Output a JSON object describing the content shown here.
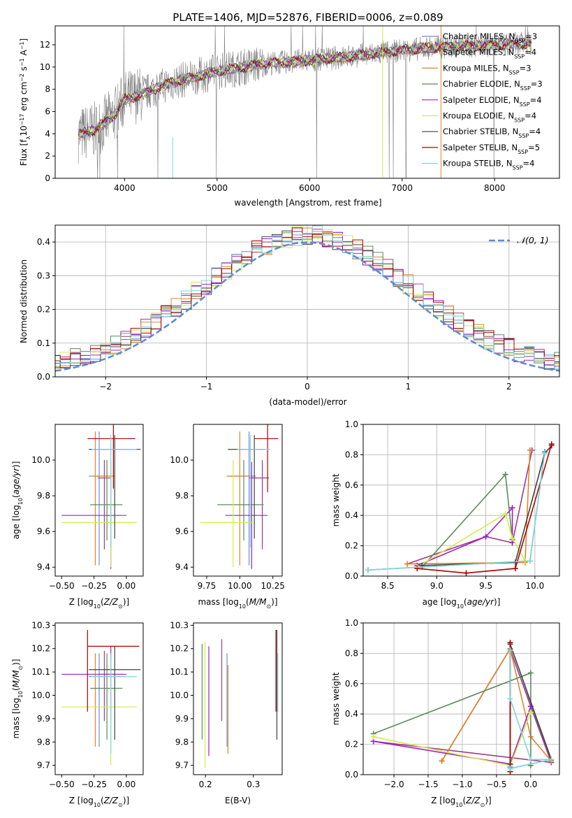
{
  "figure": {
    "title": "PLATE=1406, MJD=52876, FIBERID=0006, z=0.089"
  },
  "colors": {
    "Chabrier MILES": "#6a8fd8",
    "Salpeter MILES": "#a03a8a",
    "Kroupa MILES": "#e0852a",
    "Chabrier ELODIE": "#5c8a5c",
    "Salpeter ELODIE": "#a020c8",
    "Kroupa ELODIE": "#d4ea4a",
    "Chabrier STELIB": "#404040",
    "Salpeter STELIB": "#b00000",
    "Kroupa STELIB": "#7ed6da",
    "data": "#808080",
    "normal": "#5b8ad8"
  },
  "chart_data": [
    {
      "id": "spectrum",
      "type": "line",
      "xlabel": "wavelength [Angstrom, rest frame]",
      "ylabel": "Flux [f_λ 10^-17 erg cm^-2 s^-1 A^-1]",
      "xlim": [
        3250,
        8700
      ],
      "ylim": [
        0,
        13.7
      ],
      "xticks": [
        4000,
        5000,
        6000,
        7000,
        8000
      ],
      "yticks": [
        0,
        2,
        4,
        6,
        8,
        10,
        12
      ],
      "legend_position": "right",
      "series": [
        {
          "name": "Chabrier MILES",
          "nssp": "3"
        },
        {
          "name": "Salpeter MILES",
          "nssp": "4"
        },
        {
          "name": "Kroupa MILES",
          "nssp": "3"
        },
        {
          "name": "Chabrier ELODIE",
          "nssp": "3"
        },
        {
          "name": "Salpeter ELODIE",
          "nssp": "4"
        },
        {
          "name": "Kroupa ELODIE",
          "nssp": "4"
        },
        {
          "name": "Chabrier STELIB",
          "nssp": "4"
        },
        {
          "name": "Salpeter STELIB",
          "nssp": "5"
        },
        {
          "name": "Kroupa STELIB",
          "nssp": "4"
        }
      ],
      "model_continuum": {
        "x": [
          3500,
          3700,
          3900,
          4000,
          4200,
          4500,
          5000,
          5500,
          6000,
          6500,
          7000,
          7400,
          8000,
          8400
        ],
        "y": [
          3.9,
          4.4,
          5.8,
          7.1,
          7.6,
          8.6,
          9.6,
          10.3,
          10.6,
          11.0,
          11.5,
          11.8,
          12.0,
          12.1
        ]
      }
    },
    {
      "id": "residuals",
      "type": "line",
      "xlabel": "(data-model)/error",
      "ylabel": "Normed distribution",
      "xlim": [
        -2.5,
        2.5
      ],
      "ylim": [
        0,
        0.45
      ],
      "xticks": [
        -2,
        -1,
        0,
        1,
        2
      ],
      "yticks": [
        0.0,
        0.1,
        0.2,
        0.3,
        0.4
      ],
      "legend_label": "𝒩(0, 1)",
      "legend_position": "top-right",
      "grid": true
    },
    {
      "id": "age_vs_Z",
      "type": "scatter",
      "xlabel": "Z [log10(Z/Z⊙)]",
      "ylabel": "age  [log10(age/yr)]",
      "xlim": [
        -0.55,
        0.13
      ],
      "ylim": [
        9.35,
        10.2
      ],
      "xticks": [
        -0.5,
        -0.25,
        0.0
      ],
      "yticks": [
        9.4,
        9.6,
        9.8,
        10.0
      ],
      "points": [
        {
          "series": "Chabrier MILES",
          "x": -0.21,
          "y": 9.91,
          "xerr": [
            0.08,
            0.1
          ],
          "yerr": [
            0.5,
            0.25
          ]
        },
        {
          "series": "Salpeter MILES",
          "x": -0.17,
          "y": 9.9,
          "xerr": [
            0.05,
            0.05
          ],
          "yerr": [
            0.4,
            0.1
          ]
        },
        {
          "series": "Kroupa MILES",
          "x": -0.24,
          "y": 9.91,
          "xerr": [
            0.02,
            0.15
          ],
          "yerr": [
            0.5,
            0.25
          ]
        },
        {
          "series": "Chabrier ELODIE",
          "x": -0.15,
          "y": 9.75,
          "xerr": [
            0.13,
            0.12
          ],
          "yerr": [
            0.2,
            0.25
          ]
        },
        {
          "series": "Salpeter ELODIE",
          "x": -0.12,
          "y": 9.69,
          "xerr": [
            0.38,
            0.12
          ],
          "yerr": [
            0.3,
            0.3
          ]
        },
        {
          "series": "Kroupa ELODIE",
          "x": -0.12,
          "y": 9.65,
          "xerr": [
            0.38,
            0.2
          ],
          "yerr": [
            0.25,
            0.35
          ]
        },
        {
          "series": "Chabrier STELIB",
          "x": -0.09,
          "y": 10.06,
          "xerr": [
            0.2,
            0.2
          ],
          "yerr": [
            0.5,
            0.08
          ]
        },
        {
          "series": "Salpeter STELIB",
          "x": -0.1,
          "y": 10.12,
          "xerr": [
            0.2,
            0.17
          ],
          "yerr": [
            0.28,
            0.08
          ]
        },
        {
          "series": "Kroupa STELIB",
          "x": -0.12,
          "y": 10.06,
          "xerr": [
            0.15,
            0.2
          ],
          "yerr": [
            0.55,
            0.08
          ]
        }
      ]
    },
    {
      "id": "age_vs_mass",
      "type": "scatter",
      "xlabel": "mass [log10(M/M⊙)]",
      "ylabel": "",
      "xlim": [
        9.65,
        10.32
      ],
      "ylim": [
        9.35,
        10.2
      ],
      "xticks": [
        9.75,
        10.0,
        10.25
      ],
      "yticks": [
        9.4,
        9.6,
        9.8,
        10.0
      ],
      "points": [
        {
          "series": "Chabrier MILES",
          "x": 10.07,
          "y": 9.91,
          "xerr": [
            0.15,
            0.05
          ],
          "yerr": [
            0.5,
            0.25
          ]
        },
        {
          "series": "Salpeter MILES",
          "x": 10.17,
          "y": 9.9,
          "xerr": [
            0.1,
            0.05
          ],
          "yerr": [
            0.4,
            0.1
          ]
        },
        {
          "series": "Kroupa MILES",
          "x": 10.0,
          "y": 9.91,
          "xerr": [
            0.1,
            0.08
          ],
          "yerr": [
            0.5,
            0.25
          ]
        },
        {
          "series": "Chabrier ELODIE",
          "x": 10.03,
          "y": 9.75,
          "xerr": [
            0.2,
            0.15
          ],
          "yerr": [
            0.2,
            0.25
          ]
        },
        {
          "series": "Salpeter ELODIE",
          "x": 10.09,
          "y": 9.69,
          "xerr": [
            0.2,
            0.12
          ],
          "yerr": [
            0.3,
            0.3
          ]
        },
        {
          "series": "Kroupa ELODIE",
          "x": 9.95,
          "y": 9.65,
          "xerr": [
            0.25,
            0.15
          ],
          "yerr": [
            0.25,
            0.35
          ]
        },
        {
          "series": "Chabrier STELIB",
          "x": 10.11,
          "y": 10.06,
          "xerr": [
            0.2,
            0.08
          ],
          "yerr": [
            0.5,
            0.08
          ]
        },
        {
          "series": "Salpeter STELIB",
          "x": 10.21,
          "y": 10.12,
          "xerr": [
            0.1,
            0.08
          ],
          "yerr": [
            0.3,
            0.08
          ]
        },
        {
          "series": "Kroupa STELIB",
          "x": 10.08,
          "y": 10.06,
          "xerr": [
            0.1,
            0.15
          ],
          "yerr": [
            0.55,
            0.08
          ]
        }
      ]
    },
    {
      "id": "weight_vs_age",
      "type": "line",
      "xlabel": "age  [log10(age/yr)]",
      "ylabel": "mass weight",
      "xlim": [
        8.25,
        10.25
      ],
      "ylim": [
        0,
        1.0
      ],
      "xticks": [
        8.5,
        9.0,
        9.5,
        10.0
      ],
      "yticks": [
        0.0,
        0.2,
        0.4,
        0.6,
        0.8,
        1.0
      ],
      "grid": true,
      "series": [
        {
          "name": "Chabrier MILES",
          "x": [
            8.3,
            9.95,
            10.1
          ],
          "y": [
            0.04,
            0.1,
            0.82
          ]
        },
        {
          "name": "Salpeter MILES",
          "x": [
            8.7,
            9.5,
            9.77,
            9.97
          ],
          "y": [
            0.08,
            0.26,
            0.22,
            0.83
          ]
        },
        {
          "name": "Kroupa MILES",
          "x": [
            8.7,
            9.9,
            9.95
          ],
          "y": [
            0.08,
            0.09,
            0.83
          ]
        },
        {
          "name": "Chabrier ELODIE",
          "x": [
            8.85,
            9.7,
            9.77
          ],
          "y": [
            0.06,
            0.67,
            0.24
          ]
        },
        {
          "name": "Salpeter ELODIE",
          "x": [
            8.8,
            9.5,
            9.77,
            9.77
          ],
          "y": [
            0.07,
            0.26,
            0.45,
            0.22
          ]
        },
        {
          "name": "Kroupa ELODIE",
          "x": [
            8.8,
            9.7,
            9.77,
            9.9
          ],
          "y": [
            0.06,
            0.41,
            0.25,
            0.1
          ]
        },
        {
          "name": "Chabrier STELIB",
          "x": [
            8.85,
            9.8,
            10.1,
            10.17
          ],
          "y": [
            0.07,
            0.09,
            0.81,
            0.86
          ]
        },
        {
          "name": "Salpeter STELIB",
          "x": [
            8.8,
            9.3,
            9.8,
            10.17
          ],
          "y": [
            0.05,
            0.02,
            0.05,
            0.87
          ]
        },
        {
          "name": "Kroupa STELIB",
          "x": [
            8.3,
            9.95,
            10.1
          ],
          "y": [
            0.04,
            0.1,
            0.81
          ]
        }
      ]
    },
    {
      "id": "mass_vs_Z",
      "type": "scatter",
      "xlabel": "Z [log10(Z/Z⊙)]",
      "ylabel": "mass [log10(M/M⊙)]",
      "xlim": [
        -0.55,
        0.13
      ],
      "ylim": [
        9.66,
        10.31
      ],
      "xticks": [
        -0.5,
        -0.25,
        0.0
      ],
      "yticks": [
        9.7,
        9.8,
        9.9,
        10.0,
        10.1,
        10.2,
        10.3
      ],
      "points": [
        {
          "series": "Chabrier MILES",
          "x": -0.21,
          "y": 10.08,
          "xerr": [
            0.08,
            0.2
          ],
          "yerr": [
            0.3,
            0.1
          ]
        },
        {
          "series": "Salpeter MILES",
          "x": -0.17,
          "y": 10.09,
          "xerr": [
            0.05,
            0.15
          ],
          "yerr": [
            0.2,
            0.1
          ]
        },
        {
          "series": "Kroupa MILES",
          "x": -0.24,
          "y": 10.08,
          "xerr": [
            0.02,
            0.15
          ],
          "yerr": [
            0.3,
            0.1
          ]
        },
        {
          "series": "Chabrier ELODIE",
          "x": -0.15,
          "y": 10.03,
          "xerr": [
            0.13,
            0.12
          ],
          "yerr": [
            0.22,
            0.15
          ]
        },
        {
          "series": "Salpeter ELODIE",
          "x": -0.12,
          "y": 10.09,
          "xerr": [
            0.38,
            0.12
          ],
          "yerr": [
            0.2,
            0.12
          ]
        },
        {
          "series": "Kroupa ELODIE",
          "x": -0.12,
          "y": 9.95,
          "xerr": [
            0.38,
            0.2
          ],
          "yerr": [
            0.25,
            0.2
          ]
        },
        {
          "series": "Chabrier STELIB",
          "x": -0.09,
          "y": 10.11,
          "xerr": [
            0.2,
            0.2
          ],
          "yerr": [
            0.3,
            0.1
          ]
        },
        {
          "series": "Salpeter STELIB",
          "x": -0.3,
          "y": 10.21,
          "xerr": [
            0.0,
            0.4
          ],
          "yerr": [
            0.28,
            0.07
          ]
        },
        {
          "series": "Kroupa STELIB",
          "x": -0.12,
          "y": 10.08,
          "xerr": [
            0.15,
            0.2
          ],
          "yerr": [
            0.33,
            0.1
          ]
        }
      ]
    },
    {
      "id": "mass_vs_ebv",
      "type": "scatter",
      "xlabel": "E(B-V)",
      "ylabel": "",
      "xlim": [
        0.175,
        0.36
      ],
      "ylim": [
        9.66,
        10.31
      ],
      "xticks": [
        0.2,
        0.3
      ],
      "yticks": [
        9.7,
        9.8,
        9.9,
        10.0,
        10.1,
        10.2,
        10.3
      ],
      "points": [
        {
          "series": "Chabrier MILES",
          "x": 0.245,
          "y": 10.08,
          "yerr": [
            0.3,
            0.1
          ]
        },
        {
          "series": "Salpeter MILES",
          "x": 0.234,
          "y": 10.09,
          "yerr": [
            0.2,
            0.15
          ]
        },
        {
          "series": "Kroupa MILES",
          "x": 0.247,
          "y": 10.08,
          "yerr": [
            0.33,
            0.05
          ]
        },
        {
          "series": "Chabrier ELODIE",
          "x": 0.193,
          "y": 10.03,
          "yerr": [
            0.22,
            0.19
          ]
        },
        {
          "series": "Salpeter ELODIE",
          "x": 0.207,
          "y": 10.09,
          "yerr": [
            0.35,
            0.12
          ]
        },
        {
          "series": "Kroupa ELODIE",
          "x": 0.199,
          "y": 9.95,
          "yerr": [
            0.26,
            0.28
          ]
        },
        {
          "series": "Chabrier STELIB",
          "x": 0.349,
          "y": 10.11,
          "yerr": [
            0.3,
            0.17
          ]
        },
        {
          "series": "Salpeter STELIB",
          "x": 0.347,
          "y": 10.21,
          "yerr": [
            0.28,
            0.07
          ]
        },
        {
          "series": "Kroupa STELIB",
          "x": 0.351,
          "y": 10.08,
          "yerr": [
            0.15,
            0.1
          ]
        }
      ]
    },
    {
      "id": "weight_vs_Z",
      "type": "line",
      "xlabel": "Z [log10(Z/Z⊙)]",
      "ylabel": "mass weight",
      "xlim": [
        -2.45,
        0.42
      ],
      "ylim": [
        0,
        1.0
      ],
      "xticks": [
        -2.0,
        -1.5,
        -1.0,
        -0.5,
        0.0
      ],
      "yticks": [
        0.0,
        0.2,
        0.4,
        0.6,
        0.8,
        1.0
      ],
      "grid": true,
      "series": [
        {
          "name": "Chabrier MILES",
          "x": [
            -0.3,
            0.3,
            -0.3,
            -0.3
          ],
          "y": [
            0.04,
            0.1,
            0.82,
            0.05
          ]
        },
        {
          "name": "Salpeter MILES",
          "x": [
            -2.3,
            0.3,
            0.0,
            -0.3,
            -1.3
          ],
          "y": [
            0.22,
            0.08,
            0.45,
            0.83,
            0.09
          ]
        },
        {
          "name": "Kroupa MILES",
          "x": [
            -1.3,
            -0.3,
            0.0,
            0.3
          ],
          "y": [
            0.09,
            0.83,
            0.25,
            0.09
          ]
        },
        {
          "name": "Chabrier ELODIE",
          "x": [
            -2.3,
            0.0,
            0.0
          ],
          "y": [
            0.27,
            0.67,
            0.06
          ]
        },
        {
          "name": "Salpeter ELODIE",
          "x": [
            -2.3,
            -0.3,
            0.0
          ],
          "y": [
            0.22,
            0.07,
            0.45
          ]
        },
        {
          "name": "Kroupa ELODIE",
          "x": [
            -2.3,
            -0.3,
            0.0
          ],
          "y": [
            0.25,
            0.06,
            0.41
          ]
        },
        {
          "name": "Chabrier STELIB",
          "x": [
            -0.3,
            -0.3,
            0.3
          ],
          "y": [
            0.07,
            0.86,
            0.1
          ]
        },
        {
          "name": "Salpeter STELIB",
          "x": [
            -0.3,
            -0.3
          ],
          "y": [
            0.02,
            0.87
          ]
        },
        {
          "name": "Kroupa STELIB",
          "x": [
            -0.3,
            -0.3,
            0.0,
            0.3,
            -0.3
          ],
          "y": [
            0.82,
            0.5,
            0.1,
            0.1,
            0.04
          ]
        }
      ]
    }
  ]
}
